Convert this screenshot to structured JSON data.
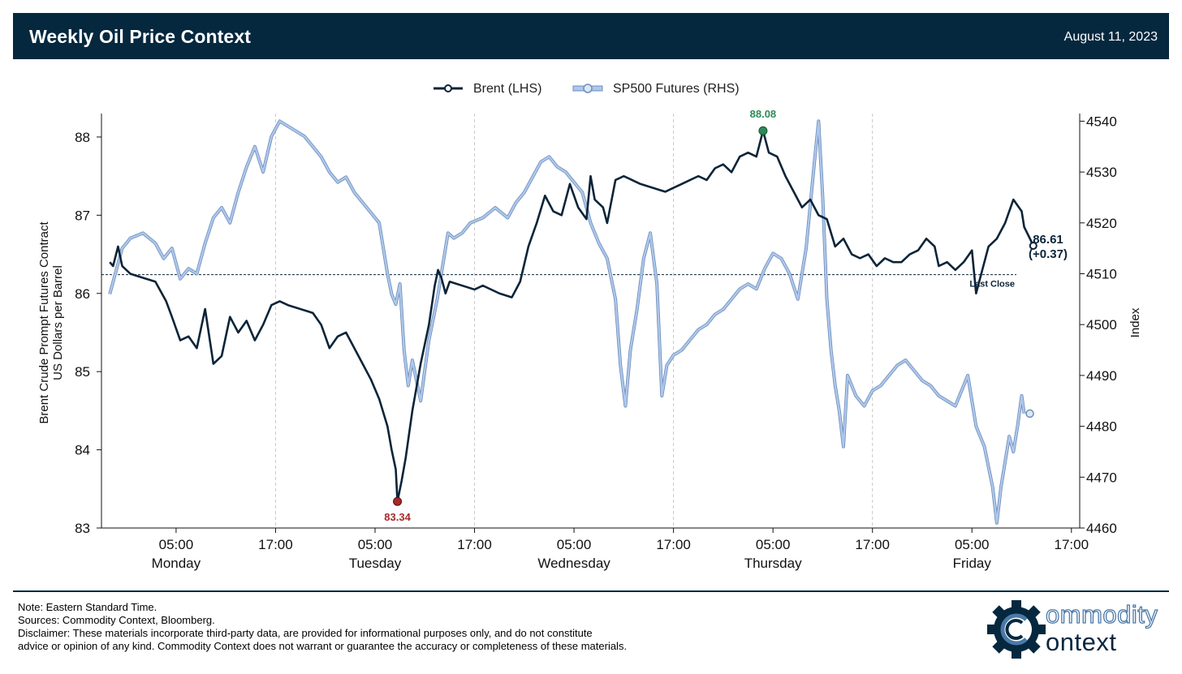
{
  "header": {
    "title": "Weekly Oil Price Context",
    "date": "August 11, 2023"
  },
  "colors": {
    "header_bg": "#05283f",
    "brent": "#0b2438",
    "sp500_fill": "#aec7ec",
    "sp500_edge": "#6f8eb8",
    "high_marker": "#2e8b57",
    "low_marker": "#a52a2a",
    "grid": "#c8c8c8"
  },
  "chart_data": {
    "type": "line",
    "legend": [
      "Brent (LHS)",
      "SP500 Futures (RHS)"
    ],
    "legend_position": "top-center",
    "y_left": {
      "label_line1": "Brent Crude Prompt Futures Contract",
      "label_line2": "US Dollars per Barrel",
      "range": [
        83,
        88.3
      ],
      "ticks": [
        "83",
        "84",
        "85",
        "86",
        "87",
        "88"
      ]
    },
    "y_right": {
      "label": "Index",
      "range": [
        4460,
        4541.5
      ],
      "ticks": [
        "4460",
        "4470",
        "4480",
        "4490",
        "4500",
        "4510",
        "4520",
        "4530",
        "4540"
      ]
    },
    "x_axis": {
      "unit": "hours since Monday 00:00 EST",
      "range": [
        -4,
        114
      ],
      "ticks": [
        {
          "hour": 5,
          "time": "05:00",
          "day": "Monday"
        },
        {
          "hour": 17,
          "time": "17:00",
          "day": ""
        },
        {
          "hour": 29,
          "time": "05:00",
          "day": "Tuesday"
        },
        {
          "hour": 41,
          "time": "17:00",
          "day": ""
        },
        {
          "hour": 53,
          "time": "05:00",
          "day": "Wednesday"
        },
        {
          "hour": 65,
          "time": "17:00",
          "day": ""
        },
        {
          "hour": 77,
          "time": "05:00",
          "day": "Thursday"
        },
        {
          "hour": 89,
          "time": "17:00",
          "day": ""
        },
        {
          "hour": 101,
          "time": "05:00",
          "day": "Friday"
        },
        {
          "hour": 113,
          "time": "17:00",
          "day": ""
        }
      ],
      "gridlines_at": [
        17,
        41,
        65,
        89
      ]
    },
    "last_close": {
      "value": 86.24,
      "label": "Last Close"
    },
    "high": {
      "hour": 75.8,
      "value": 88.08,
      "label": "88.08"
    },
    "low": {
      "hour": 31.7,
      "value": 83.34,
      "label": "83.34"
    },
    "last": {
      "hour": 107.3,
      "value": 86.61,
      "label": "86.61",
      "change": "(+0.37)"
    },
    "sp500_last": {
      "hour": 107.3,
      "value": 4482.5
    },
    "series": [
      {
        "name": "Brent (LHS)",
        "axis": "left",
        "points": [
          [
            -3.0,
            86.4
          ],
          [
            -2.6,
            86.35
          ],
          [
            -2.0,
            86.6
          ],
          [
            -1.5,
            86.35
          ],
          [
            -0.5,
            86.25
          ],
          [
            1,
            86.2
          ],
          [
            2.5,
            86.15
          ],
          [
            3.8,
            85.9
          ],
          [
            4.5,
            85.7
          ],
          [
            5.5,
            85.4
          ],
          [
            6.5,
            85.45
          ],
          [
            7.5,
            85.3
          ],
          [
            8.5,
            85.8
          ],
          [
            9.5,
            85.1
          ],
          [
            10.5,
            85.2
          ],
          [
            11.5,
            85.7
          ],
          [
            12.5,
            85.5
          ],
          [
            13.5,
            85.65
          ],
          [
            14.5,
            85.4
          ],
          [
            15.5,
            85.6
          ],
          [
            16.5,
            85.85
          ],
          [
            17.5,
            85.9
          ],
          [
            18.5,
            85.85
          ],
          [
            21.5,
            85.75
          ],
          [
            22.5,
            85.6
          ],
          [
            23.5,
            85.3
          ],
          [
            24.5,
            85.45
          ],
          [
            25.5,
            85.5
          ],
          [
            26.5,
            85.3
          ],
          [
            27.5,
            85.1
          ],
          [
            28.5,
            84.9
          ],
          [
            29.5,
            84.65
          ],
          [
            30.5,
            84.3
          ],
          [
            31,
            84.0
          ],
          [
            31.5,
            83.75
          ],
          [
            31.7,
            83.34
          ],
          [
            32.2,
            83.6
          ],
          [
            32.7,
            83.9
          ],
          [
            33.5,
            84.5
          ],
          [
            34.5,
            85.1
          ],
          [
            35.5,
            85.6
          ],
          [
            36.2,
            86.1
          ],
          [
            36.6,
            86.3
          ],
          [
            37.0,
            86.2
          ],
          [
            37.5,
            86.0
          ],
          [
            38.0,
            86.15
          ],
          [
            41,
            86.05
          ],
          [
            42,
            86.1
          ],
          [
            44,
            86.0
          ],
          [
            45.5,
            85.95
          ],
          [
            46.5,
            86.15
          ],
          [
            47.5,
            86.6
          ],
          [
            48.5,
            86.9
          ],
          [
            49.5,
            87.25
          ],
          [
            50.5,
            87.05
          ],
          [
            51.5,
            87.0
          ],
          [
            52.5,
            87.4
          ],
          [
            53.5,
            87.1
          ],
          [
            54.5,
            86.95
          ],
          [
            55.0,
            87.5
          ],
          [
            55.5,
            87.2
          ],
          [
            56.5,
            87.1
          ],
          [
            57.0,
            86.9
          ],
          [
            58,
            87.45
          ],
          [
            59,
            87.5
          ],
          [
            60,
            87.45
          ],
          [
            61,
            87.4
          ],
          [
            64,
            87.3
          ],
          [
            65,
            87.35
          ],
          [
            66,
            87.4
          ],
          [
            67,
            87.45
          ],
          [
            68,
            87.5
          ],
          [
            69,
            87.45
          ],
          [
            70,
            87.6
          ],
          [
            71,
            87.65
          ],
          [
            72,
            87.55
          ],
          [
            73,
            87.75
          ],
          [
            74,
            87.8
          ],
          [
            75,
            87.75
          ],
          [
            75.8,
            88.08
          ],
          [
            76.5,
            87.8
          ],
          [
            77.5,
            87.75
          ],
          [
            78.5,
            87.5
          ],
          [
            79.5,
            87.3
          ],
          [
            80.5,
            87.1
          ],
          [
            81.5,
            87.2
          ],
          [
            82.5,
            87.0
          ],
          [
            83.5,
            86.95
          ],
          [
            84.5,
            86.6
          ],
          [
            85.5,
            86.7
          ],
          [
            86.5,
            86.5
          ],
          [
            87.5,
            86.45
          ],
          [
            88.5,
            86.5
          ],
          [
            89.5,
            86.35
          ],
          [
            90.5,
            86.45
          ],
          [
            91.5,
            86.4
          ],
          [
            92.5,
            86.4
          ],
          [
            93.5,
            86.5
          ],
          [
            94.5,
            86.55
          ],
          [
            95.5,
            86.7
          ],
          [
            96.5,
            86.6
          ],
          [
            97,
            86.35
          ],
          [
            98,
            86.4
          ],
          [
            99,
            86.3
          ],
          [
            100,
            86.4
          ],
          [
            101,
            86.55
          ],
          [
            101.5,
            86.0
          ],
          [
            102,
            86.2
          ],
          [
            103,
            86.6
          ],
          [
            104,
            86.7
          ],
          [
            105,
            86.9
          ],
          [
            106,
            87.2
          ],
          [
            107,
            87.05
          ],
          [
            107.3,
            86.85
          ],
          [
            108,
            86.7
          ],
          [
            108.4,
            86.61
          ]
        ]
      },
      {
        "name": "SP500 Futures (RHS)",
        "axis": "right",
        "points": [
          [
            -3.0,
            4506
          ],
          [
            -2.5,
            4509
          ],
          [
            -2.0,
            4512
          ],
          [
            -1.5,
            4515
          ],
          [
            -0.5,
            4517
          ],
          [
            1,
            4518
          ],
          [
            2.5,
            4516
          ],
          [
            3.5,
            4513
          ],
          [
            4.5,
            4515
          ],
          [
            5.5,
            4509
          ],
          [
            6.5,
            4511
          ],
          [
            7.5,
            4510
          ],
          [
            8.5,
            4516
          ],
          [
            9.5,
            4521
          ],
          [
            10.5,
            4523
          ],
          [
            11.5,
            4520
          ],
          [
            12.5,
            4526
          ],
          [
            13.5,
            4531
          ],
          [
            14.5,
            4535
          ],
          [
            15.5,
            4530
          ],
          [
            16.5,
            4537
          ],
          [
            17.5,
            4540
          ],
          [
            18.5,
            4539
          ],
          [
            19.5,
            4538
          ],
          [
            20.5,
            4537
          ],
          [
            21.5,
            4535
          ],
          [
            22.5,
            4533
          ],
          [
            23.5,
            4530
          ],
          [
            24.5,
            4528
          ],
          [
            25.5,
            4529
          ],
          [
            26.5,
            4526
          ],
          [
            27.5,
            4524
          ],
          [
            28.5,
            4522
          ],
          [
            29.5,
            4520
          ],
          [
            30.5,
            4510
          ],
          [
            31,
            4506
          ],
          [
            31.5,
            4504
          ],
          [
            32.0,
            4508
          ],
          [
            32.5,
            4495
          ],
          [
            33.0,
            4488
          ],
          [
            33.5,
            4493
          ],
          [
            34.5,
            4485
          ],
          [
            35.5,
            4497
          ],
          [
            36.5,
            4505
          ],
          [
            37.2,
            4512
          ],
          [
            37.8,
            4518
          ],
          [
            38.5,
            4517
          ],
          [
            39.5,
            4518
          ],
          [
            40.5,
            4520
          ],
          [
            42,
            4521
          ],
          [
            43.5,
            4523
          ],
          [
            45,
            4521
          ],
          [
            46,
            4524
          ],
          [
            47,
            4526
          ],
          [
            48,
            4529
          ],
          [
            49,
            4532
          ],
          [
            50,
            4533
          ],
          [
            51,
            4531
          ],
          [
            52,
            4530
          ],
          [
            53,
            4528
          ],
          [
            54,
            4526
          ],
          [
            55,
            4520
          ],
          [
            56,
            4516
          ],
          [
            57,
            4513
          ],
          [
            58,
            4505
          ],
          [
            58.6,
            4492
          ],
          [
            59.2,
            4484
          ],
          [
            59.8,
            4495
          ],
          [
            60.6,
            4503
          ],
          [
            61.4,
            4513
          ],
          [
            62.2,
            4518
          ],
          [
            63.0,
            4508
          ],
          [
            63.6,
            4486
          ],
          [
            64.2,
            4492
          ],
          [
            65,
            4494
          ],
          [
            66,
            4495
          ],
          [
            67,
            4497
          ],
          [
            68,
            4499
          ],
          [
            69,
            4500
          ],
          [
            70,
            4502
          ],
          [
            71,
            4503
          ],
          [
            72,
            4505
          ],
          [
            73,
            4507
          ],
          [
            74,
            4508
          ],
          [
            75,
            4507
          ],
          [
            76,
            4511
          ],
          [
            77,
            4514
          ],
          [
            78,
            4513
          ],
          [
            79,
            4510
          ],
          [
            80,
            4505
          ],
          [
            81,
            4515
          ],
          [
            82,
            4532
          ],
          [
            82.5,
            4540
          ],
          [
            83,
            4525
          ],
          [
            83.5,
            4505
          ],
          [
            84,
            4495
          ],
          [
            84.5,
            4488
          ],
          [
            85,
            4483
          ],
          [
            85.5,
            4476
          ],
          [
            86,
            4490
          ],
          [
            87,
            4486
          ],
          [
            88,
            4484
          ],
          [
            89,
            4487
          ],
          [
            90,
            4488
          ],
          [
            91,
            4490
          ],
          [
            92,
            4492
          ],
          [
            93,
            4493
          ],
          [
            94,
            4491
          ],
          [
            95,
            4489
          ],
          [
            96,
            4488
          ],
          [
            97,
            4486
          ],
          [
            98,
            4485
          ],
          [
            99,
            4484
          ],
          [
            100,
            4488
          ],
          [
            100.5,
            4490
          ],
          [
            101,
            4485
          ],
          [
            101.5,
            4480
          ],
          [
            102,
            4478
          ],
          [
            102.5,
            4476
          ],
          [
            103,
            4472
          ],
          [
            103.5,
            4468
          ],
          [
            104,
            4461
          ],
          [
            104.5,
            4468
          ],
          [
            105,
            4473
          ],
          [
            105.5,
            4478
          ],
          [
            106,
            4475
          ],
          [
            106.5,
            4480
          ],
          [
            107,
            4486
          ],
          [
            107.3,
            4482.5
          ]
        ]
      }
    ]
  },
  "footer": {
    "note": "Note: Eastern Standard Time.",
    "sources": "Sources: Commodity Context, Bloomberg.",
    "disclaimer_line1": "Disclaimer: These materials incorporate third-party data, are provided for informational purposes only, and do not constitute",
    "disclaimer_line2": "advice or opinion of any kind. Commodity Context does not warrant or guarantee the accuracy or completeness of these materials."
  },
  "logo": {
    "word1": "ommodity",
    "word2": "ontext"
  }
}
